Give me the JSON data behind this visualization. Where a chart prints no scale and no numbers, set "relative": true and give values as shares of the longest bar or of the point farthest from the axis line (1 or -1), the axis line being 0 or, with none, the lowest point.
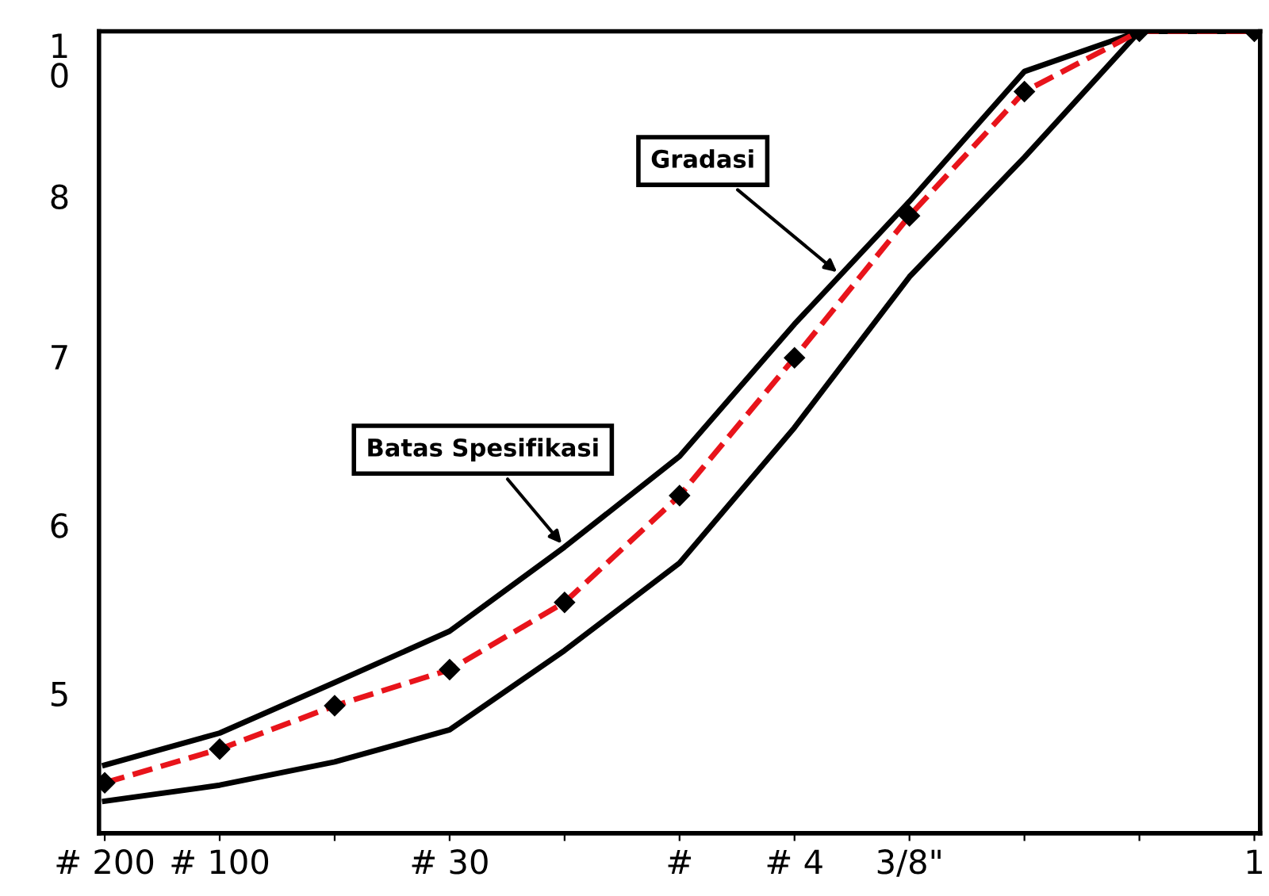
{
  "chart_data": {
    "type": "line",
    "relative": true,
    "categories": [
      "# 200",
      "# 100",
      null,
      "# 30",
      null,
      "#",
      "# 4",
      "3/8\"",
      null,
      null,
      "1"
    ],
    "series": [
      {
        "color": "#000000",
        "line_style": "solid",
        "marker": "none",
        "values": [
          0.085,
          0.125,
          0.188,
          0.252,
          0.357,
          0.47,
          0.635,
          0.788,
          0.95,
          1,
          1
        ]
      },
      {
        "color": "#000000",
        "line_style": "solid",
        "marker": "none",
        "values": [
          0.04,
          0.06,
          0.089,
          0.129,
          0.228,
          0.337,
          0.506,
          0.694,
          0.843,
          1,
          1
        ]
      },
      {
        "color": "#e8141b",
        "line_style": "dashed",
        "marker": "diamond",
        "values": [
          0.063,
          0.105,
          0.159,
          0.204,
          0.288,
          0.421,
          0.593,
          0.77,
          0.925,
          1,
          1
        ]
      }
    ],
    "annotations": [
      "Gradasi",
      "Batas Spesifikasi",
      "1\n0",
      "8",
      "7",
      "6",
      "5"
    ],
    "grid": false,
    "legend": false
  }
}
